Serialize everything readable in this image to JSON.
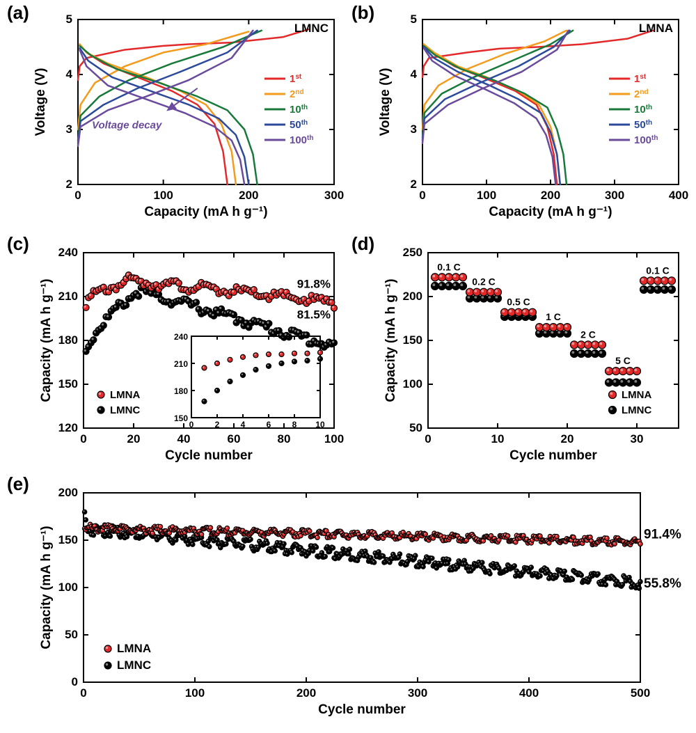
{
  "panel_labels": {
    "a": "(a)",
    "b": "(b)",
    "c": "(c)",
    "d": "(d)",
    "e": "(e)"
  },
  "common_colors": {
    "bg": "#ffffff",
    "axis": "#000000",
    "lmna": "#e3292a",
    "lmnc": "#000000"
  },
  "panel_a": {
    "type": "line",
    "title_corner": "LMNC",
    "xlabel": "Capacity (mA h g⁻¹)",
    "ylabel": "Voltage (V)",
    "xlim": [
      0,
      300
    ],
    "xtick_step": 100,
    "ylim": [
      2,
      5
    ],
    "ytick_step": 1,
    "line_width": 2.5,
    "annotation": "Voltage decay",
    "annotation_color": "#6a4a9c",
    "legend": [
      {
        "label": "1",
        "sup": "st",
        "color": "#e3292a"
      },
      {
        "label": "2",
        "sup": "nd",
        "color": "#f39b1d"
      },
      {
        "label": "10",
        "sup": "th",
        "color": "#187a3a"
      },
      {
        "label": "50",
        "sup": "th",
        "color": "#2c4a9c"
      },
      {
        "label": "100",
        "sup": "th",
        "color": "#6a4a9c"
      }
    ],
    "curves": [
      {
        "color": "#e3292a",
        "charge": [
          [
            0,
            3.9
          ],
          [
            2,
            4.15
          ],
          [
            10,
            4.3
          ],
          [
            55,
            4.45
          ],
          [
            100,
            4.52
          ],
          [
            130,
            4.55
          ],
          [
            180,
            4.58
          ],
          [
            240,
            4.68
          ],
          [
            270,
            4.82
          ]
        ],
        "discharge": [
          [
            175,
            2.0
          ],
          [
            170,
            2.6
          ],
          [
            160,
            3.1
          ],
          [
            140,
            3.45
          ],
          [
            110,
            3.7
          ],
          [
            70,
            3.95
          ],
          [
            30,
            4.2
          ],
          [
            10,
            4.4
          ],
          [
            2,
            4.55
          ]
        ]
      },
      {
        "color": "#f39b1d",
        "charge": [
          [
            0,
            3.0
          ],
          [
            3,
            3.45
          ],
          [
            20,
            3.85
          ],
          [
            55,
            4.15
          ],
          [
            100,
            4.4
          ],
          [
            150,
            4.55
          ],
          [
            200,
            4.78
          ]
        ],
        "discharge": [
          [
            185,
            2.0
          ],
          [
            180,
            2.6
          ],
          [
            168,
            3.1
          ],
          [
            150,
            3.45
          ],
          [
            120,
            3.7
          ],
          [
            80,
            3.95
          ],
          [
            35,
            4.2
          ],
          [
            10,
            4.4
          ],
          [
            2,
            4.55
          ]
        ]
      },
      {
        "color": "#187a3a",
        "charge": [
          [
            0,
            2.8
          ],
          [
            3,
            3.25
          ],
          [
            25,
            3.6
          ],
          [
            60,
            3.9
          ],
          [
            110,
            4.2
          ],
          [
            170,
            4.5
          ],
          [
            215,
            4.8
          ]
        ],
        "discharge": [
          [
            210,
            2.0
          ],
          [
            205,
            2.55
          ],
          [
            195,
            3.0
          ],
          [
            175,
            3.35
          ],
          [
            140,
            3.6
          ],
          [
            95,
            3.85
          ],
          [
            45,
            4.1
          ],
          [
            15,
            4.35
          ],
          [
            2,
            4.52
          ]
        ]
      },
      {
        "color": "#2c4a9c",
        "charge": [
          [
            0,
            2.75
          ],
          [
            3,
            3.15
          ],
          [
            30,
            3.45
          ],
          [
            70,
            3.75
          ],
          [
            120,
            4.05
          ],
          [
            175,
            4.4
          ],
          [
            210,
            4.8
          ]
        ],
        "discharge": [
          [
            200,
            2.0
          ],
          [
            195,
            2.5
          ],
          [
            185,
            2.9
          ],
          [
            165,
            3.2
          ],
          [
            130,
            3.45
          ],
          [
            85,
            3.7
          ],
          [
            40,
            3.95
          ],
          [
            12,
            4.25
          ],
          [
            2,
            4.48
          ]
        ]
      },
      {
        "color": "#6a4a9c",
        "charge": [
          [
            0,
            2.7
          ],
          [
            3,
            3.05
          ],
          [
            35,
            3.35
          ],
          [
            80,
            3.6
          ],
          [
            130,
            3.9
          ],
          [
            180,
            4.3
          ],
          [
            205,
            4.8
          ]
        ],
        "discharge": [
          [
            195,
            2.0
          ],
          [
            190,
            2.45
          ],
          [
            180,
            2.8
          ],
          [
            160,
            3.05
          ],
          [
            125,
            3.3
          ],
          [
            80,
            3.55
          ],
          [
            35,
            3.8
          ],
          [
            10,
            4.15
          ],
          [
            2,
            4.45
          ]
        ]
      }
    ]
  },
  "panel_b": {
    "type": "line",
    "title_corner": "LMNA",
    "xlabel": "Capacity (mA h g⁻¹)",
    "ylabel": "Voltage (V)",
    "xlim": [
      0,
      400
    ],
    "xtick_step": 100,
    "ylim": [
      2,
      5
    ],
    "ytick_step": 1,
    "line_width": 2.5,
    "legend": [
      {
        "label": "1",
        "sup": "st",
        "color": "#e3292a"
      },
      {
        "label": "2",
        "sup": "nd",
        "color": "#f39b1d"
      },
      {
        "label": "10",
        "sup": "th",
        "color": "#187a3a"
      },
      {
        "label": "50",
        "sup": "th",
        "color": "#2c4a9c"
      },
      {
        "label": "100",
        "sup": "th",
        "color": "#6a4a9c"
      }
    ],
    "curves": [
      {
        "color": "#e3292a",
        "charge": [
          [
            0,
            3.95
          ],
          [
            2,
            4.15
          ],
          [
            10,
            4.3
          ],
          [
            70,
            4.4
          ],
          [
            120,
            4.47
          ],
          [
            180,
            4.5
          ],
          [
            250,
            4.55
          ],
          [
            320,
            4.65
          ],
          [
            360,
            4.8
          ]
        ],
        "discharge": [
          [
            210,
            2.0
          ],
          [
            205,
            2.55
          ],
          [
            195,
            3.05
          ],
          [
            178,
            3.45
          ],
          [
            145,
            3.7
          ],
          [
            100,
            3.92
          ],
          [
            50,
            4.15
          ],
          [
            15,
            4.4
          ],
          [
            2,
            4.55
          ]
        ]
      },
      {
        "color": "#f39b1d",
        "charge": [
          [
            0,
            3.0
          ],
          [
            3,
            3.45
          ],
          [
            25,
            3.8
          ],
          [
            70,
            4.1
          ],
          [
            130,
            4.38
          ],
          [
            190,
            4.6
          ],
          [
            225,
            4.8
          ]
        ],
        "discharge": [
          [
            215,
            2.0
          ],
          [
            210,
            2.55
          ],
          [
            200,
            3.05
          ],
          [
            182,
            3.45
          ],
          [
            150,
            3.7
          ],
          [
            105,
            3.93
          ],
          [
            55,
            4.15
          ],
          [
            18,
            4.4
          ],
          [
            2,
            4.55
          ]
        ]
      },
      {
        "color": "#187a3a",
        "charge": [
          [
            0,
            2.85
          ],
          [
            3,
            3.3
          ],
          [
            30,
            3.65
          ],
          [
            80,
            3.95
          ],
          [
            140,
            4.25
          ],
          [
            200,
            4.55
          ],
          [
            235,
            4.8
          ]
        ],
        "discharge": [
          [
            225,
            2.0
          ],
          [
            220,
            2.55
          ],
          [
            210,
            3.0
          ],
          [
            195,
            3.4
          ],
          [
            160,
            3.65
          ],
          [
            115,
            3.88
          ],
          [
            60,
            4.1
          ],
          [
            20,
            4.35
          ],
          [
            2,
            4.52
          ]
        ]
      },
      {
        "color": "#2c4a9c",
        "charge": [
          [
            0,
            2.8
          ],
          [
            3,
            3.2
          ],
          [
            35,
            3.55
          ],
          [
            90,
            3.85
          ],
          [
            150,
            4.15
          ],
          [
            205,
            4.5
          ],
          [
            230,
            4.8
          ]
        ],
        "discharge": [
          [
            215,
            2.0
          ],
          [
            210,
            2.55
          ],
          [
            200,
            2.95
          ],
          [
            185,
            3.3
          ],
          [
            150,
            3.55
          ],
          [
            105,
            3.8
          ],
          [
            55,
            4.05
          ],
          [
            18,
            4.3
          ],
          [
            2,
            4.5
          ]
        ]
      },
      {
        "color": "#6a4a9c",
        "charge": [
          [
            0,
            2.75
          ],
          [
            3,
            3.1
          ],
          [
            40,
            3.45
          ],
          [
            95,
            3.75
          ],
          [
            155,
            4.05
          ],
          [
            210,
            4.45
          ],
          [
            228,
            4.8
          ]
        ],
        "discharge": [
          [
            208,
            2.0
          ],
          [
            203,
            2.5
          ],
          [
            193,
            2.9
          ],
          [
            178,
            3.2
          ],
          [
            143,
            3.48
          ],
          [
            100,
            3.72
          ],
          [
            50,
            3.98
          ],
          [
            15,
            4.25
          ],
          [
            2,
            4.48
          ]
        ]
      }
    ]
  },
  "panel_c": {
    "type": "scatter",
    "xlabel": "Cycle number",
    "ylabel": "Capacity (mA h g⁻¹)",
    "xlim": [
      0,
      100
    ],
    "xtick_step": 20,
    "ylim": [
      120,
      240
    ],
    "ytick_step": 30,
    "marker_r": 4.5,
    "legend": [
      {
        "label": "LMNA",
        "color": "#e3292a"
      },
      {
        "label": "LMNC",
        "color": "#000000"
      }
    ],
    "annot_lmna": "91.8%",
    "annot_lmnc": "81.5%",
    "series": {
      "lmna": {
        "color": "#e3292a",
        "start": 205,
        "peak_x": 18,
        "peak_y": 223,
        "end": 208
      },
      "lmnc": {
        "color": "#000000",
        "start": 168,
        "peak_x": 22,
        "peak_y": 216,
        "end": 178
      }
    },
    "inset": {
      "xlim": [
        0,
        10
      ],
      "xtick_step": 2,
      "ylim": [
        150,
        240
      ],
      "ytick_step": 30,
      "lmna": [
        205,
        210,
        214,
        217,
        219,
        220,
        220,
        221,
        221,
        222
      ],
      "lmnc": [
        168,
        180,
        190,
        197,
        203,
        207,
        210,
        212,
        213,
        215
      ]
    }
  },
  "panel_d": {
    "type": "scatter",
    "xlabel": "Cycle number",
    "ylabel": "Capacity (mA h g⁻¹)",
    "xlim": [
      0,
      36
    ],
    "xtick_step": 10,
    "ylim": [
      50,
      250
    ],
    "ytick_step": 50,
    "marker_r": 5.5,
    "legend": [
      {
        "label": "LMNA",
        "color": "#e3292a"
      },
      {
        "label": "LMNC",
        "color": "#000000"
      }
    ],
    "rates": [
      {
        "label": "0.1 C",
        "start": 1,
        "lmna": 222,
        "lmnc": 212
      },
      {
        "label": "0.2 C",
        "start": 6,
        "lmna": 205,
        "lmnc": 198
      },
      {
        "label": "0.5 C",
        "start": 11,
        "lmna": 182,
        "lmnc": 177
      },
      {
        "label": "1 C",
        "start": 16,
        "lmna": 165,
        "lmnc": 158
      },
      {
        "label": "2 C",
        "start": 21,
        "lmna": 145,
        "lmnc": 135
      },
      {
        "label": "5 C",
        "start": 26,
        "lmna": 115,
        "lmnc": 102
      },
      {
        "label": "0.1 C",
        "start": 31,
        "lmna": 218,
        "lmnc": 208
      }
    ]
  },
  "panel_e": {
    "type": "scatter",
    "xlabel": "Cycle number",
    "ylabel": "Capacity (mA h g⁻¹)",
    "xlim": [
      0,
      500
    ],
    "xtick_step": 100,
    "ylim": [
      0,
      200
    ],
    "ytick_step": 50,
    "marker_r": 3.2,
    "legend": [
      {
        "label": "LMNA",
        "color": "#e3292a"
      },
      {
        "label": "LMNC",
        "color": "#000000"
      }
    ],
    "annot_lmna": "91.4%",
    "annot_lmnc": "55.8%",
    "series": {
      "lmna": {
        "color": "#e3292a",
        "start": 165,
        "end": 150,
        "noise": 2
      },
      "lmnc": {
        "color": "#000000",
        "start": 165,
        "end": 108,
        "peak0": 188,
        "noise": 3
      }
    }
  }
}
